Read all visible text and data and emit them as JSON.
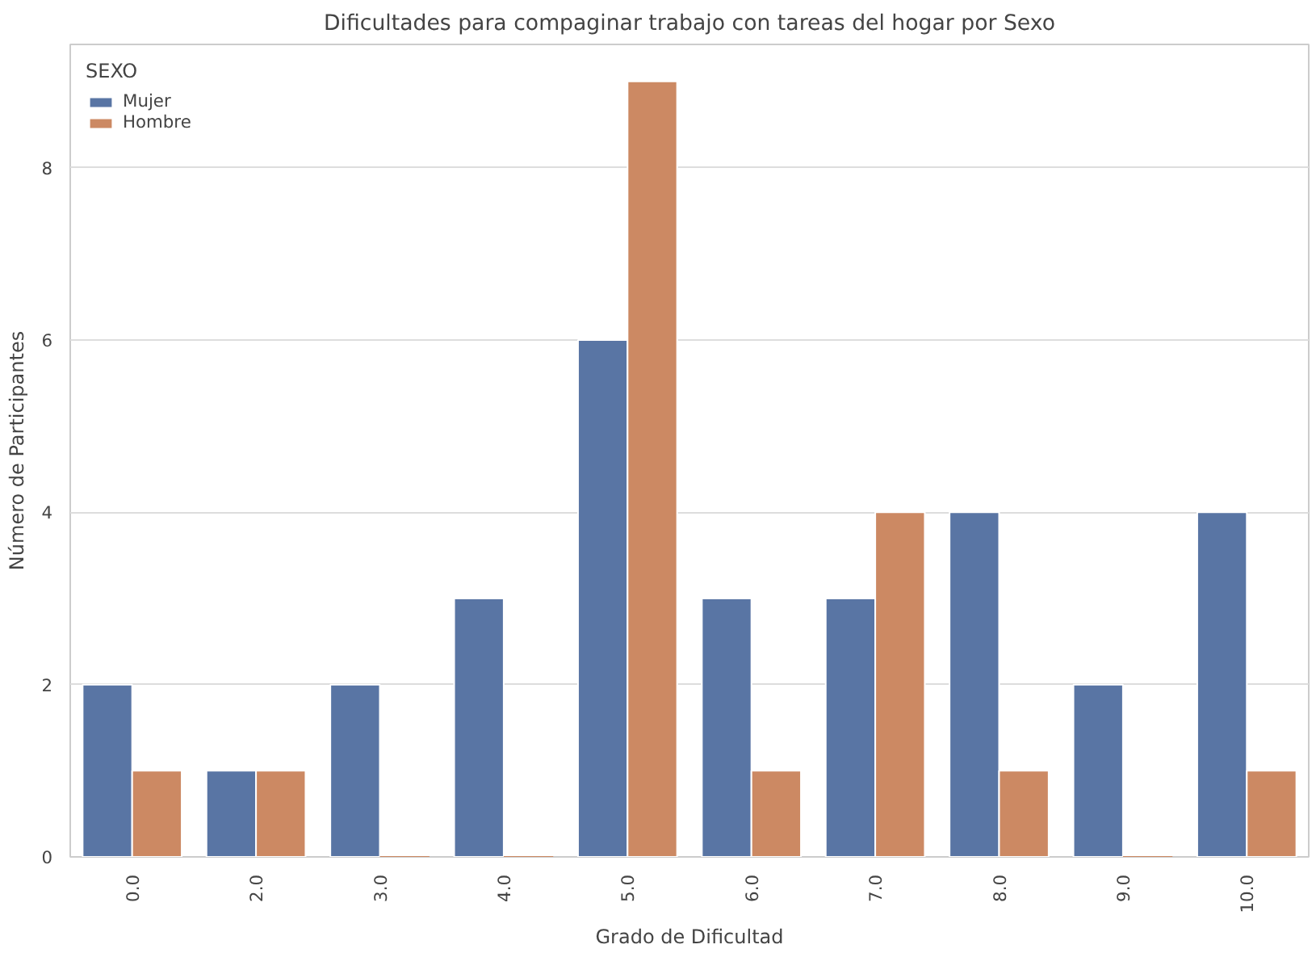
{
  "chart_data": {
    "type": "bar",
    "title": "Dificultades para compaginar trabajo con tareas del hogar por Sexo",
    "xlabel": "Grado de Dificultad",
    "ylabel": "Número de Participantes",
    "legend_title": "SEXO",
    "categories": [
      "0.0",
      "2.0",
      "3.0",
      "4.0",
      "5.0",
      "6.0",
      "7.0",
      "8.0",
      "9.0",
      "10.0"
    ],
    "series": [
      {
        "name": "Mujer",
        "color": "#5975a4",
        "values": [
          2,
          1,
          2,
          3,
          6,
          3,
          3,
          4,
          2,
          4
        ]
      },
      {
        "name": "Hombre",
        "color": "#cc8963",
        "values": [
          1,
          1,
          0,
          0,
          9,
          1,
          4,
          1,
          0,
          1
        ]
      }
    ],
    "ylim": [
      0,
      9.43
    ],
    "yticks": [
      0,
      2,
      4,
      6,
      8
    ],
    "grid": "y",
    "legend": "top left"
  }
}
